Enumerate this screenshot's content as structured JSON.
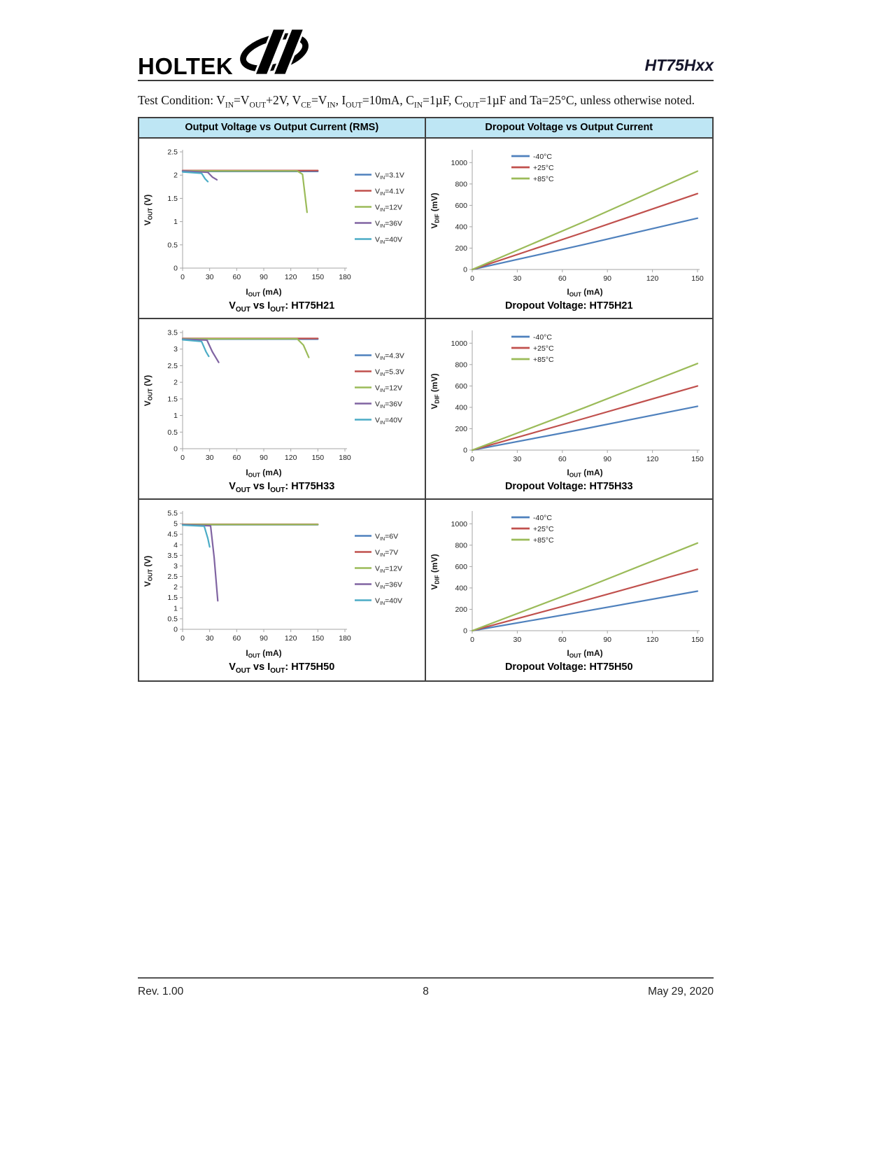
{
  "header": {
    "brand": "HOLTEK",
    "product": "HT75Hxx"
  },
  "test_condition": "Test Condition: V~IN~=V~OUT~+2V, V~CE~=V~IN~, I~OUT~=10mA, C~IN~=1µF, C~OUT~=1µF and Ta=25°C, unless otherwise noted.",
  "table_headers": {
    "left": "Output Voltage vs Output Current (RMS)",
    "right": "Dropout Voltage vs Output Current"
  },
  "footer": {
    "rev": "Rev. 1.00",
    "page_num": "8",
    "date": "May 29, 2020"
  },
  "colors": {
    "table_header_bg": "#BEE6F4",
    "series_blue": "#4F81BD",
    "series_red": "#C0504D",
    "series_green": "#9BBB59",
    "series_purple": "#8064A2",
    "series_cyan": "#4BACC6"
  },
  "chart_data": [
    {
      "name": "vout-vs-iout-ht75h21",
      "type": "line",
      "title": "V~OUT~ vs I~OUT~: HT75H21",
      "xlabel": "I~OUT~ (mA)",
      "ylabel": "V~OUT~ (V)",
      "xlim": [
        0,
        180
      ],
      "ylim": [
        0,
        2.5
      ],
      "xticks": [
        0,
        30,
        60,
        90,
        120,
        150,
        180
      ],
      "yticks": [
        0,
        0.5,
        1,
        1.5,
        2,
        2.5
      ],
      "legend_position": "right",
      "series": [
        {
          "name": "V~IN~=3.1V",
          "color": "#4F81BD",
          "points": [
            [
              0,
              2.08
            ],
            [
              150,
              2.08
            ]
          ]
        },
        {
          "name": "V~IN~=4.1V",
          "color": "#C0504D",
          "points": [
            [
              0,
              2.1
            ],
            [
              150,
              2.1
            ]
          ]
        },
        {
          "name": "V~IN~=12V",
          "color": "#9BBB59",
          "points": [
            [
              0,
              2.09
            ],
            [
              127,
              2.09
            ],
            [
              133,
              2.02
            ],
            [
              138,
              1.2
            ]
          ]
        },
        {
          "name": "V~IN~=36V",
          "color": "#8064A2",
          "points": [
            [
              0,
              2.09
            ],
            [
              28,
              2.06
            ],
            [
              33,
              1.96
            ],
            [
              38,
              1.9
            ]
          ]
        },
        {
          "name": "V~IN~=40V",
          "color": "#4BACC6",
          "points": [
            [
              0,
              2.07
            ],
            [
              21,
              2.04
            ],
            [
              25,
              1.92
            ],
            [
              28,
              1.86
            ]
          ]
        }
      ]
    },
    {
      "name": "dropout-ht75h21",
      "type": "line",
      "title": "Dropout Voltage: HT75H21",
      "xlabel": "I~OUT~ (mA)",
      "ylabel": "V~DIF~ (mV)",
      "xlim": [
        0,
        150
      ],
      "ylim": [
        0,
        1100
      ],
      "xticks": [
        0,
        30,
        60,
        90,
        120,
        150
      ],
      "yticks": [
        0,
        200,
        400,
        600,
        800,
        1000
      ],
      "legend_position": "top",
      "series": [
        {
          "name": "-40°C",
          "color": "#4F81BD",
          "points": [
            [
              0,
              0
            ],
            [
              75,
              235
            ],
            [
              150,
              480
            ]
          ]
        },
        {
          "name": "+25°C",
          "color": "#C0504D",
          "points": [
            [
              0,
              0
            ],
            [
              75,
              350
            ],
            [
              150,
              710
            ]
          ]
        },
        {
          "name": "+85°C",
          "color": "#9BBB59",
          "points": [
            [
              0,
              0
            ],
            [
              75,
              450
            ],
            [
              150,
              920
            ]
          ]
        }
      ]
    },
    {
      "name": "vout-vs-iout-ht75h33",
      "type": "line",
      "title": "V~OUT~ vs I~OUT~: HT75H33",
      "xlabel": "I~OUT~ (mA)",
      "ylabel": "V~OUT~ (V)",
      "xlim": [
        0,
        180
      ],
      "ylim": [
        0,
        3.5
      ],
      "xticks": [
        0,
        30,
        60,
        90,
        120,
        150,
        180
      ],
      "yticks": [
        0,
        0.5,
        1,
        1.5,
        2,
        2.5,
        3,
        3.5
      ],
      "legend_position": "right",
      "series": [
        {
          "name": "V~IN~=4.3V",
          "color": "#4F81BD",
          "points": [
            [
              0,
              3.3
            ],
            [
              150,
              3.3
            ]
          ]
        },
        {
          "name": "V~IN~=5.3V",
          "color": "#C0504D",
          "points": [
            [
              0,
              3.32
            ],
            [
              150,
              3.32
            ]
          ]
        },
        {
          "name": "V~IN~=12V",
          "color": "#9BBB59",
          "points": [
            [
              0,
              3.31
            ],
            [
              127,
              3.31
            ],
            [
              134,
              3.12
            ],
            [
              140,
              2.75
            ]
          ]
        },
        {
          "name": "V~IN~=36V",
          "color": "#8064A2",
          "points": [
            [
              0,
              3.3
            ],
            [
              27,
              3.27
            ],
            [
              33,
              2.92
            ],
            [
              40,
              2.6
            ]
          ]
        },
        {
          "name": "V~IN~=40V",
          "color": "#4BACC6",
          "points": [
            [
              0,
              3.28
            ],
            [
              21,
              3.23
            ],
            [
              26,
              2.92
            ],
            [
              29,
              2.78
            ]
          ]
        }
      ]
    },
    {
      "name": "dropout-ht75h33",
      "type": "line",
      "title": "Dropout Voltage: HT75H33",
      "xlabel": "I~OUT~ (mA)",
      "ylabel": "V~DIF~ (mV)",
      "xlim": [
        0,
        150
      ],
      "ylim": [
        0,
        1100
      ],
      "xticks": [
        0,
        30,
        60,
        90,
        120,
        150
      ],
      "yticks": [
        0,
        200,
        400,
        600,
        800,
        1000
      ],
      "legend_position": "top",
      "series": [
        {
          "name": "-40°C",
          "color": "#4F81BD",
          "points": [
            [
              0,
              0
            ],
            [
              75,
              200
            ],
            [
              150,
              410
            ]
          ]
        },
        {
          "name": "+25°C",
          "color": "#C0504D",
          "points": [
            [
              0,
              0
            ],
            [
              75,
              298
            ],
            [
              150,
              600
            ]
          ]
        },
        {
          "name": "+85°C",
          "color": "#9BBB59",
          "points": [
            [
              0,
              0
            ],
            [
              75,
              398
            ],
            [
              150,
              810
            ]
          ]
        }
      ]
    },
    {
      "name": "vout-vs-iout-ht75h50",
      "type": "line",
      "title": "V~OUT~ vs I~OUT~: HT75H50",
      "xlabel": "I~OUT~ (mA)",
      "ylabel": "V~OUT~ (V)",
      "xlim": [
        0,
        180
      ],
      "ylim": [
        0,
        5.5
      ],
      "xticks": [
        0,
        30,
        60,
        90,
        120,
        150,
        180
      ],
      "yticks": [
        0,
        0.5,
        1,
        1.5,
        2,
        2.5,
        3,
        3.5,
        4,
        4.5,
        5,
        5.5
      ],
      "legend_position": "right",
      "series": [
        {
          "name": "V~IN~=6V",
          "color": "#4F81BD",
          "points": [
            [
              0,
              4.95
            ],
            [
              150,
              4.95
            ]
          ]
        },
        {
          "name": "V~IN~=7V",
          "color": "#C0504D",
          "points": [
            [
              0,
              4.97
            ],
            [
              150,
              4.97
            ]
          ]
        },
        {
          "name": "V~IN~=12V",
          "color": "#9BBB59",
          "points": [
            [
              0,
              4.96
            ],
            [
              150,
              4.96
            ]
          ]
        },
        {
          "name": "V~IN~=36V",
          "color": "#8064A2",
          "points": [
            [
              0,
              4.95
            ],
            [
              31,
              4.9
            ],
            [
              35,
              3.4
            ],
            [
              39,
              1.35
            ]
          ]
        },
        {
          "name": "V~IN~=40V",
          "color": "#4BACC6",
          "points": [
            [
              0,
              4.93
            ],
            [
              24,
              4.88
            ],
            [
              28,
              4.3
            ],
            [
              30,
              3.9
            ]
          ]
        }
      ]
    },
    {
      "name": "dropout-ht75h50",
      "type": "line",
      "title": "Dropout Voltage: HT75H50",
      "xlabel": "I~OUT~ (mA)",
      "ylabel": "V~DIF~ (mV)",
      "xlim": [
        0,
        150
      ],
      "ylim": [
        0,
        1100
      ],
      "xticks": [
        0,
        30,
        60,
        90,
        120,
        150
      ],
      "yticks": [
        0,
        200,
        400,
        600,
        800,
        1000
      ],
      "legend_position": "top",
      "series": [
        {
          "name": "-40°C",
          "color": "#4F81BD",
          "points": [
            [
              0,
              0
            ],
            [
              75,
              182
            ],
            [
              150,
              370
            ]
          ]
        },
        {
          "name": "+25°C",
          "color": "#C0504D",
          "points": [
            [
              0,
              0
            ],
            [
              75,
              283
            ],
            [
              150,
              575
            ]
          ]
        },
        {
          "name": "+85°C",
          "color": "#9BBB59",
          "points": [
            [
              0,
              0
            ],
            [
              75,
              400
            ],
            [
              150,
              820
            ]
          ]
        }
      ]
    }
  ]
}
